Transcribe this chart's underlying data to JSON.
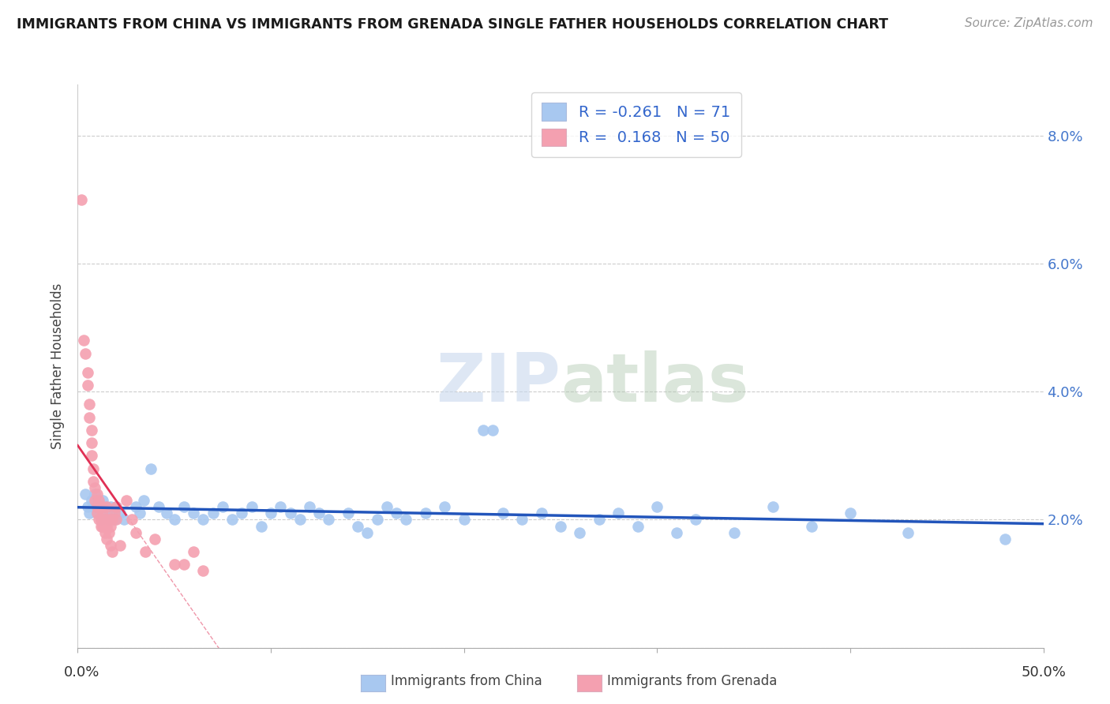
{
  "title": "IMMIGRANTS FROM CHINA VS IMMIGRANTS FROM GRENADA SINGLE FATHER HOUSEHOLDS CORRELATION CHART",
  "source": "Source: ZipAtlas.com",
  "ylabel": "Single Father Households",
  "y_ticks": [
    0.0,
    0.02,
    0.04,
    0.06,
    0.08
  ],
  "y_tick_labels": [
    "",
    "2.0%",
    "4.0%",
    "6.0%",
    "8.0%"
  ],
  "x_lim": [
    0.0,
    0.5
  ],
  "y_lim": [
    0.0,
    0.088
  ],
  "legend_china_R": "-0.261",
  "legend_china_N": "71",
  "legend_grenada_R": "0.168",
  "legend_grenada_N": "50",
  "china_color": "#a8c8f0",
  "grenada_color": "#f4a0b0",
  "china_line_color": "#2255bb",
  "grenada_line_color": "#e03055",
  "china_scatter": [
    [
      0.004,
      0.024
    ],
    [
      0.005,
      0.022
    ],
    [
      0.006,
      0.021
    ],
    [
      0.007,
      0.023
    ],
    [
      0.008,
      0.022
    ],
    [
      0.009,
      0.024
    ],
    [
      0.01,
      0.021
    ],
    [
      0.011,
      0.022
    ],
    [
      0.012,
      0.02
    ],
    [
      0.013,
      0.023
    ],
    [
      0.014,
      0.022
    ],
    [
      0.015,
      0.021
    ],
    [
      0.016,
      0.02
    ],
    [
      0.017,
      0.022
    ],
    [
      0.018,
      0.021
    ],
    [
      0.019,
      0.02
    ],
    [
      0.02,
      0.022
    ],
    [
      0.022,
      0.021
    ],
    [
      0.024,
      0.02
    ],
    [
      0.03,
      0.022
    ],
    [
      0.032,
      0.021
    ],
    [
      0.034,
      0.023
    ],
    [
      0.038,
      0.028
    ],
    [
      0.042,
      0.022
    ],
    [
      0.046,
      0.021
    ],
    [
      0.05,
      0.02
    ],
    [
      0.055,
      0.022
    ],
    [
      0.06,
      0.021
    ],
    [
      0.065,
      0.02
    ],
    [
      0.07,
      0.021
    ],
    [
      0.075,
      0.022
    ],
    [
      0.08,
      0.02
    ],
    [
      0.085,
      0.021
    ],
    [
      0.09,
      0.022
    ],
    [
      0.095,
      0.019
    ],
    [
      0.1,
      0.021
    ],
    [
      0.105,
      0.022
    ],
    [
      0.11,
      0.021
    ],
    [
      0.115,
      0.02
    ],
    [
      0.12,
      0.022
    ],
    [
      0.125,
      0.021
    ],
    [
      0.13,
      0.02
    ],
    [
      0.14,
      0.021
    ],
    [
      0.145,
      0.019
    ],
    [
      0.15,
      0.018
    ],
    [
      0.155,
      0.02
    ],
    [
      0.16,
      0.022
    ],
    [
      0.165,
      0.021
    ],
    [
      0.17,
      0.02
    ],
    [
      0.18,
      0.021
    ],
    [
      0.19,
      0.022
    ],
    [
      0.2,
      0.02
    ],
    [
      0.21,
      0.034
    ],
    [
      0.215,
      0.034
    ],
    [
      0.22,
      0.021
    ],
    [
      0.23,
      0.02
    ],
    [
      0.24,
      0.021
    ],
    [
      0.25,
      0.019
    ],
    [
      0.26,
      0.018
    ],
    [
      0.27,
      0.02
    ],
    [
      0.28,
      0.021
    ],
    [
      0.29,
      0.019
    ],
    [
      0.3,
      0.022
    ],
    [
      0.31,
      0.018
    ],
    [
      0.32,
      0.02
    ],
    [
      0.34,
      0.018
    ],
    [
      0.36,
      0.022
    ],
    [
      0.38,
      0.019
    ],
    [
      0.4,
      0.021
    ],
    [
      0.43,
      0.018
    ],
    [
      0.48,
      0.017
    ]
  ],
  "grenada_scatter": [
    [
      0.002,
      0.07
    ],
    [
      0.003,
      0.048
    ],
    [
      0.004,
      0.046
    ],
    [
      0.005,
      0.043
    ],
    [
      0.005,
      0.041
    ],
    [
      0.006,
      0.038
    ],
    [
      0.006,
      0.036
    ],
    [
      0.007,
      0.034
    ],
    [
      0.007,
      0.032
    ],
    [
      0.007,
      0.03
    ],
    [
      0.008,
      0.028
    ],
    [
      0.008,
      0.026
    ],
    [
      0.009,
      0.025
    ],
    [
      0.009,
      0.023
    ],
    [
      0.01,
      0.024
    ],
    [
      0.01,
      0.022
    ],
    [
      0.01,
      0.021
    ],
    [
      0.011,
      0.023
    ],
    [
      0.011,
      0.022
    ],
    [
      0.011,
      0.02
    ],
    [
      0.012,
      0.022
    ],
    [
      0.012,
      0.02
    ],
    [
      0.012,
      0.019
    ],
    [
      0.013,
      0.022
    ],
    [
      0.013,
      0.021
    ],
    [
      0.013,
      0.019
    ],
    [
      0.014,
      0.02
    ],
    [
      0.014,
      0.018
    ],
    [
      0.015,
      0.022
    ],
    [
      0.015,
      0.019
    ],
    [
      0.015,
      0.017
    ],
    [
      0.016,
      0.02
    ],
    [
      0.016,
      0.018
    ],
    [
      0.017,
      0.019
    ],
    [
      0.017,
      0.016
    ],
    [
      0.018,
      0.02
    ],
    [
      0.018,
      0.015
    ],
    [
      0.019,
      0.021
    ],
    [
      0.02,
      0.022
    ],
    [
      0.02,
      0.02
    ],
    [
      0.022,
      0.016
    ],
    [
      0.025,
      0.023
    ],
    [
      0.028,
      0.02
    ],
    [
      0.03,
      0.018
    ],
    [
      0.035,
      0.015
    ],
    [
      0.04,
      0.017
    ],
    [
      0.05,
      0.013
    ],
    [
      0.055,
      0.013
    ],
    [
      0.06,
      0.015
    ],
    [
      0.065,
      0.012
    ]
  ],
  "watermark_zip": "ZIP",
  "watermark_atlas": "atlas",
  "background_color": "#ffffff",
  "grid_color": "#cccccc"
}
